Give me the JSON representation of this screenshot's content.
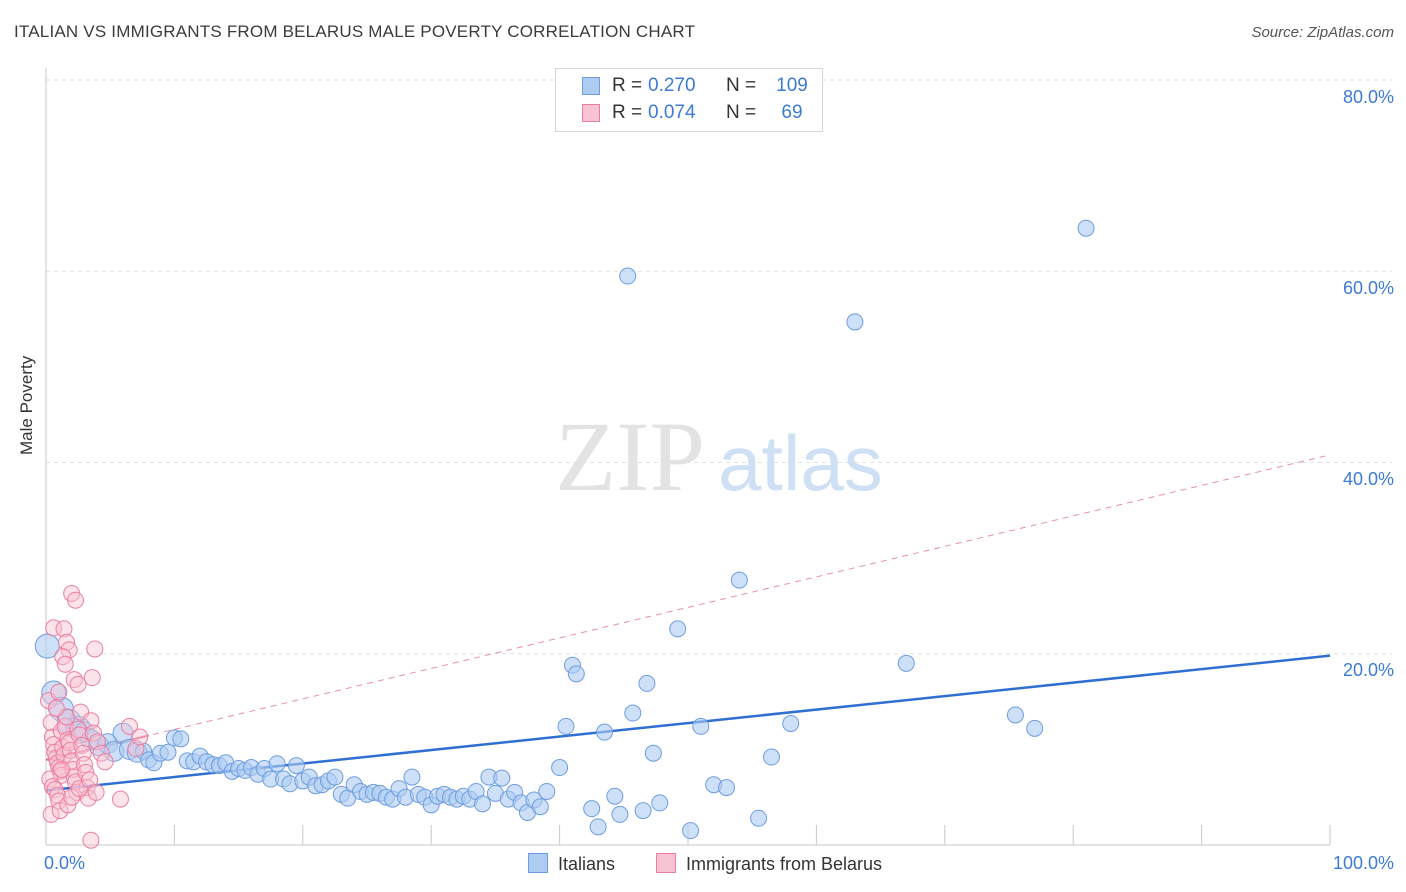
{
  "title": "ITALIAN VS IMMIGRANTS FROM BELARUS MALE POVERTY CORRELATION CHART",
  "source": "Source: ZipAtlas.com",
  "watermark": {
    "zip": "ZIP",
    "atlas": "atlas"
  },
  "legend": {
    "rows": [
      {
        "r_label": "R =",
        "r_value": "0.270",
        "n_label": "N =",
        "n_value": "109"
      },
      {
        "r_label": "R =",
        "r_value": "0.074",
        "n_label": "N =",
        "n_value": "69"
      }
    ]
  },
  "colors": {
    "blue_fill": "#aecbf2",
    "blue_stroke": "#6d9de0",
    "blue_line": "#2f6fd1",
    "pink_fill": "#f8c3d2",
    "pink_stroke": "#ec7ea0",
    "pink_line": "#e26a8e",
    "tick_text": "#3c7bd6",
    "grid": "#e2e2e2"
  },
  "chart_data": {
    "type": "scatter",
    "title": "ITALIAN VS IMMIGRANTS FROM BELARUS MALE POVERTY CORRELATION CHART",
    "xlabel": "",
    "ylabel": "Male Poverty",
    "xlim": [
      0,
      100
    ],
    "ylim": [
      0,
      80
    ],
    "x_tick_labels": [
      "0.0%",
      "100.0%"
    ],
    "y_ticks": [
      20,
      40,
      60,
      80
    ],
    "y_tick_labels": [
      "20.0%",
      "40.0%",
      "60.0%",
      "80.0%"
    ],
    "grid": true,
    "series": [
      {
        "name": "Italians",
        "r": 0.27,
        "n": 109,
        "trend": {
          "x": [
            0,
            100
          ],
          "y": [
            5.7,
            19.8
          ]
        },
        "points": [
          [
            0.1,
            20.8,
            3
          ],
          [
            0.6,
            15.9,
            3
          ],
          [
            1.2,
            14.2,
            3
          ],
          [
            1.8,
            12.9,
            3
          ],
          [
            2.5,
            12.2,
            3
          ],
          [
            3.0,
            11.8,
            2
          ],
          [
            3.5,
            11.0,
            2
          ],
          [
            4.1,
            10.4,
            2
          ],
          [
            4.8,
            10.6,
            2
          ],
          [
            5.3,
            9.8,
            2
          ],
          [
            6.0,
            11.7,
            2
          ],
          [
            6.5,
            10.0,
            2
          ],
          [
            7.1,
            9.7,
            2
          ],
          [
            7.6,
            9.8,
            1
          ],
          [
            8.0,
            8.9,
            1
          ],
          [
            8.4,
            8.6,
            1
          ],
          [
            8.9,
            9.6,
            1
          ],
          [
            9.5,
            9.7,
            1
          ],
          [
            10.0,
            11.2,
            1
          ],
          [
            10.5,
            11.1,
            1
          ],
          [
            11.0,
            8.8,
            1
          ],
          [
            11.5,
            8.7,
            1
          ],
          [
            12.0,
            9.3,
            1
          ],
          [
            12.5,
            8.7,
            1
          ],
          [
            13.0,
            8.4,
            1
          ],
          [
            13.5,
            8.3,
            1
          ],
          [
            14.0,
            8.6,
            1
          ],
          [
            14.5,
            7.7,
            1
          ],
          [
            15.0,
            8.0,
            1
          ],
          [
            15.5,
            7.8,
            1
          ],
          [
            16.0,
            8.1,
            1
          ],
          [
            16.5,
            7.4,
            1
          ],
          [
            17.0,
            8.0,
            1
          ],
          [
            17.5,
            6.9,
            1
          ],
          [
            18.0,
            8.5,
            1
          ],
          [
            18.5,
            6.9,
            1
          ],
          [
            19.0,
            6.4,
            1
          ],
          [
            19.5,
            8.3,
            1
          ],
          [
            20.0,
            6.7,
            1
          ],
          [
            20.5,
            7.1,
            1
          ],
          [
            21.0,
            6.2,
            1
          ],
          [
            21.5,
            6.3,
            1
          ],
          [
            22.0,
            6.7,
            1
          ],
          [
            22.5,
            7.1,
            1
          ],
          [
            23.0,
            5.3,
            1
          ],
          [
            23.5,
            4.9,
            1
          ],
          [
            24.0,
            6.3,
            1
          ],
          [
            24.5,
            5.6,
            1
          ],
          [
            25.0,
            5.3,
            1
          ],
          [
            25.5,
            5.5,
            1
          ],
          [
            26.0,
            5.4,
            1
          ],
          [
            26.5,
            5.0,
            1
          ],
          [
            27.0,
            4.8,
            1
          ],
          [
            27.5,
            5.9,
            1
          ],
          [
            28.0,
            5.0,
            1
          ],
          [
            28.5,
            7.1,
            1
          ],
          [
            29.0,
            5.3,
            1
          ],
          [
            29.5,
            5.0,
            1
          ],
          [
            30.0,
            4.2,
            1
          ],
          [
            30.5,
            5.1,
            1
          ],
          [
            31.0,
            5.3,
            1
          ],
          [
            31.5,
            5.0,
            1
          ],
          [
            32.0,
            4.8,
            1
          ],
          [
            32.5,
            5.1,
            1
          ],
          [
            33.0,
            4.8,
            1
          ],
          [
            33.5,
            5.6,
            1
          ],
          [
            34.0,
            4.3,
            1
          ],
          [
            34.5,
            7.1,
            1
          ],
          [
            35.0,
            5.4,
            1
          ],
          [
            35.5,
            7.0,
            1
          ],
          [
            36.0,
            4.8,
            1
          ],
          [
            36.5,
            5.5,
            1
          ],
          [
            37.0,
            4.4,
            1
          ],
          [
            37.5,
            3.4,
            1
          ],
          [
            38.0,
            4.7,
            1
          ],
          [
            38.5,
            4.0,
            1
          ],
          [
            39.0,
            5.6,
            1
          ],
          [
            40.0,
            8.1,
            1
          ],
          [
            40.5,
            12.4,
            1
          ],
          [
            41.0,
            18.8,
            1
          ],
          [
            41.3,
            17.9,
            1
          ],
          [
            42.5,
            3.8,
            1
          ],
          [
            43.0,
            1.9,
            1
          ],
          [
            43.5,
            11.8,
            1
          ],
          [
            44.3,
            5.1,
            1
          ],
          [
            44.7,
            3.2,
            1
          ],
          [
            45.3,
            59.5,
            1
          ],
          [
            45.7,
            13.8,
            1
          ],
          [
            46.5,
            3.6,
            1
          ],
          [
            46.8,
            16.9,
            1
          ],
          [
            47.3,
            9.6,
            1
          ],
          [
            47.8,
            4.4,
            1
          ],
          [
            49.2,
            22.6,
            1
          ],
          [
            50.2,
            1.5,
            1
          ],
          [
            51.0,
            12.4,
            1
          ],
          [
            52.0,
            6.3,
            1
          ],
          [
            53.0,
            6.0,
            1
          ],
          [
            54.0,
            27.7,
            1
          ],
          [
            55.5,
            2.8,
            1
          ],
          [
            56.5,
            9.2,
            1
          ],
          [
            58.0,
            12.7,
            1
          ],
          [
            63.0,
            54.7,
            1
          ],
          [
            67.0,
            19.0,
            1
          ],
          [
            75.5,
            13.6,
            1
          ],
          [
            77.0,
            12.2,
            1
          ],
          [
            81.0,
            64.5,
            1
          ]
        ]
      },
      {
        "name": "Immigrants from Belarus",
        "r": 0.074,
        "n": 69,
        "trend": {
          "x": [
            0,
            100
          ],
          "y": [
            8.9,
            40.8
          ]
        },
        "points": [
          [
            0.2,
            15.1
          ],
          [
            0.4,
            12.8
          ],
          [
            0.5,
            11.3
          ],
          [
            0.6,
            10.5
          ],
          [
            0.7,
            9.7
          ],
          [
            0.8,
            9.1
          ],
          [
            0.9,
            8.6
          ],
          [
            1.0,
            8.1
          ],
          [
            1.1,
            7.7
          ],
          [
            1.2,
            7.3
          ],
          [
            0.3,
            6.9
          ],
          [
            0.5,
            6.1
          ],
          [
            0.7,
            5.8
          ],
          [
            0.9,
            5.2
          ],
          [
            1.0,
            4.6
          ],
          [
            1.2,
            11.9
          ],
          [
            1.3,
            10.2
          ],
          [
            1.4,
            9.4
          ],
          [
            1.5,
            12.4
          ],
          [
            1.6,
            13.4
          ],
          [
            1.7,
            11.0
          ],
          [
            1.8,
            10.7
          ],
          [
            1.9,
            9.9
          ],
          [
            2.0,
            8.8
          ],
          [
            2.1,
            7.9
          ],
          [
            2.2,
            7.1
          ],
          [
            2.3,
            6.6
          ],
          [
            2.4,
            5.5
          ],
          [
            2.5,
            12.1
          ],
          [
            2.6,
            11.5
          ],
          [
            2.7,
            13.9
          ],
          [
            2.8,
            10.4
          ],
          [
            2.9,
            9.6
          ],
          [
            3.0,
            8.4
          ],
          [
            3.1,
            7.6
          ],
          [
            3.2,
            6.0
          ],
          [
            3.3,
            4.9
          ],
          [
            0.4,
            3.2
          ],
          [
            1.1,
            3.6
          ],
          [
            1.7,
            4.2
          ],
          [
            2.0,
            5.0
          ],
          [
            2.6,
            5.9
          ],
          [
            3.4,
            6.8
          ],
          [
            0.6,
            22.7
          ],
          [
            1.4,
            22.6
          ],
          [
            1.6,
            21.2
          ],
          [
            1.8,
            20.4
          ],
          [
            1.3,
            19.7
          ],
          [
            1.5,
            18.9
          ],
          [
            2.2,
            17.3
          ],
          [
            2.5,
            16.8
          ],
          [
            3.6,
            17.5
          ],
          [
            3.8,
            20.5
          ],
          [
            2.0,
            26.3
          ],
          [
            2.3,
            25.6
          ],
          [
            3.5,
            13.0
          ],
          [
            3.7,
            11.7
          ],
          [
            4.0,
            10.8
          ],
          [
            4.3,
            9.6
          ],
          [
            4.6,
            8.7
          ],
          [
            3.9,
            5.5
          ],
          [
            3.5,
            0.5
          ],
          [
            5.8,
            4.8
          ],
          [
            6.5,
            12.4
          ],
          [
            7.0,
            10.1
          ],
          [
            7.3,
            11.3
          ],
          [
            0.8,
            14.3
          ],
          [
            1.0,
            16.0
          ],
          [
            1.2,
            7.9
          ]
        ]
      }
    ]
  },
  "bottom_legend": {
    "item1": "Italians",
    "item2": "Immigrants from Belarus"
  }
}
